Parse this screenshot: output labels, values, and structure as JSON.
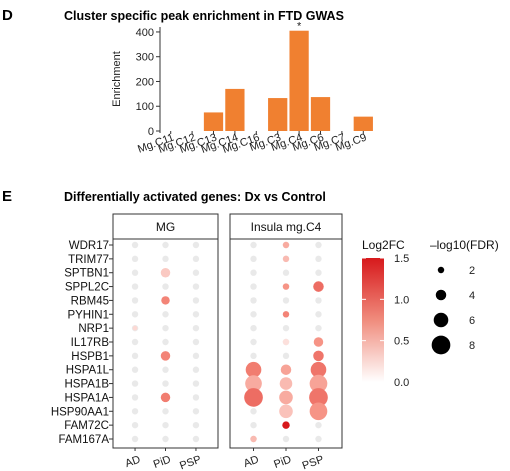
{
  "chart_data": [
    {
      "panel": "D",
      "type": "bar",
      "title": "Cluster specific peak enrichment in FTD GWAS",
      "ylabel": "Enrichment",
      "xlabel": "",
      "categories": [
        "Mg.C11",
        "Mg.C12",
        "Mg.C13",
        "Mg.C14",
        "Mg.C16",
        "Mg.C3",
        "Mg.C4",
        "Mg.C6",
        "Mg.C7",
        "Mg.C9"
      ],
      "values": [
        0,
        0,
        75,
        170,
        0,
        133,
        405,
        137,
        0,
        58
      ],
      "annotations": [
        {
          "category": "Mg.C4",
          "text": "*"
        }
      ],
      "ylim": [
        0,
        420
      ],
      "yticks": [
        0,
        100,
        200,
        300,
        400
      ],
      "bar_color": "#F08030",
      "grid": false
    },
    {
      "panel": "E",
      "type": "scatter",
      "title": "Differentially activated genes: Dx vs Control",
      "facets": [
        "MG",
        "Insula mg.C4"
      ],
      "x_categories": [
        "AD",
        "PiD",
        "PSP"
      ],
      "genes": [
        "WDR17",
        "TRIM77",
        "SPTBN1",
        "SPPL2C",
        "RBM45",
        "PYHIN1",
        "NRP1",
        "IL17RB",
        "HSPB1",
        "HSPA1L",
        "HSPA1B",
        "HSPA1A",
        "HSP90AA1",
        "FAM72C",
        "FAM167A"
      ],
      "points": [
        {
          "facet": "MG",
          "x": "PiD",
          "gene": "SPTBN1",
          "log2fc": 0.35,
          "neglog10fdr": 3.5
        },
        {
          "facet": "MG",
          "x": "PiD",
          "gene": "RBM45",
          "log2fc": 0.8,
          "neglog10fdr": 3.0
        },
        {
          "facet": "MG",
          "x": "AD",
          "gene": "NRP1",
          "log2fc": 0.25,
          "neglog10fdr": 1.2
        },
        {
          "facet": "MG",
          "x": "PiD",
          "gene": "HSPB1",
          "log2fc": 0.8,
          "neglog10fdr": 3.5
        },
        {
          "facet": "MG",
          "x": "PiD",
          "gene": "HSPA1A",
          "log2fc": 0.85,
          "neglog10fdr": 3.5
        },
        {
          "facet": "Insula mg.C4",
          "x": "PiD",
          "gene": "WDR17",
          "log2fc": 0.55,
          "neglog10fdr": 2.0
        },
        {
          "facet": "Insula mg.C4",
          "x": "PiD",
          "gene": "TRIM77",
          "log2fc": 0.45,
          "neglog10fdr": 2.0
        },
        {
          "facet": "Insula mg.C4",
          "x": "PiD",
          "gene": "SPPL2C",
          "log2fc": 0.7,
          "neglog10fdr": 2.0
        },
        {
          "facet": "Insula mg.C4",
          "x": "PSP",
          "gene": "SPPL2C",
          "log2fc": 0.95,
          "neglog10fdr": 4.0
        },
        {
          "facet": "Insula mg.C4",
          "x": "PiD",
          "gene": "PYHIN1",
          "log2fc": 0.8,
          "neglog10fdr": 2.0
        },
        {
          "facet": "Insula mg.C4",
          "x": "PiD",
          "gene": "IL17RB",
          "log2fc": 0.2,
          "neglog10fdr": 2.0
        },
        {
          "facet": "Insula mg.C4",
          "x": "PSP",
          "gene": "IL17RB",
          "log2fc": 0.7,
          "neglog10fdr": 3.5
        },
        {
          "facet": "Insula mg.C4",
          "x": "PSP",
          "gene": "HSPB1",
          "log2fc": 0.9,
          "neglog10fdr": 4.0
        },
        {
          "facet": "Insula mg.C4",
          "x": "AD",
          "gene": "HSPA1L",
          "log2fc": 0.85,
          "neglog10fdr": 6.5
        },
        {
          "facet": "Insula mg.C4",
          "x": "PiD",
          "gene": "HSPA1L",
          "log2fc": 0.6,
          "neglog10fdr": 4.0
        },
        {
          "facet": "Insula mg.C4",
          "x": "PSP",
          "gene": "HSPA1L",
          "log2fc": 0.9,
          "neglog10fdr": 6.5
        },
        {
          "facet": "Insula mg.C4",
          "x": "AD",
          "gene": "HSPA1B",
          "log2fc": 0.55,
          "neglog10fdr": 7.0
        },
        {
          "facet": "Insula mg.C4",
          "x": "PiD",
          "gene": "HSPA1B",
          "log2fc": 0.45,
          "neglog10fdr": 5.0
        },
        {
          "facet": "Insula mg.C4",
          "x": "PSP",
          "gene": "HSPA1B",
          "log2fc": 0.6,
          "neglog10fdr": 7.5
        },
        {
          "facet": "Insula mg.C4",
          "x": "AD",
          "gene": "HSPA1A",
          "log2fc": 0.95,
          "neglog10fdr": 8.0
        },
        {
          "facet": "Insula mg.C4",
          "x": "PiD",
          "gene": "HSPA1A",
          "log2fc": 0.55,
          "neglog10fdr": 5.5
        },
        {
          "facet": "Insula mg.C4",
          "x": "PSP",
          "gene": "HSPA1A",
          "log2fc": 0.9,
          "neglog10fdr": 8.0
        },
        {
          "facet": "Insula mg.C4",
          "x": "PiD",
          "gene": "HSP90AA1",
          "log2fc": 0.4,
          "neglog10fdr": 5.5
        },
        {
          "facet": "Insula mg.C4",
          "x": "PSP",
          "gene": "HSP90AA1",
          "log2fc": 0.7,
          "neglog10fdr": 7.5
        },
        {
          "facet": "Insula mg.C4",
          "x": "PiD",
          "gene": "FAM72C",
          "log2fc": 1.5,
          "neglog10fdr": 2.5
        },
        {
          "facet": "Insula mg.C4",
          "x": "AD",
          "gene": "FAM167A",
          "log2fc": 0.45,
          "neglog10fdr": 2.0
        }
      ],
      "color_legend": {
        "title": "Log2FC",
        "ticks": [
          0.0,
          0.5,
          1.0,
          1.5
        ],
        "tick_labels": [
          "0.0",
          "0.5",
          "1.0",
          "1.5"
        ],
        "low": "#ffffff",
        "high": "#D7191C"
      },
      "size_legend": {
        "title": "–log10(FDR)",
        "values": [
          2,
          4,
          6,
          8
        ]
      },
      "background_dot_color": "#e9e9e9"
    }
  ],
  "panel_labels": {
    "d": "D",
    "e": "E"
  }
}
